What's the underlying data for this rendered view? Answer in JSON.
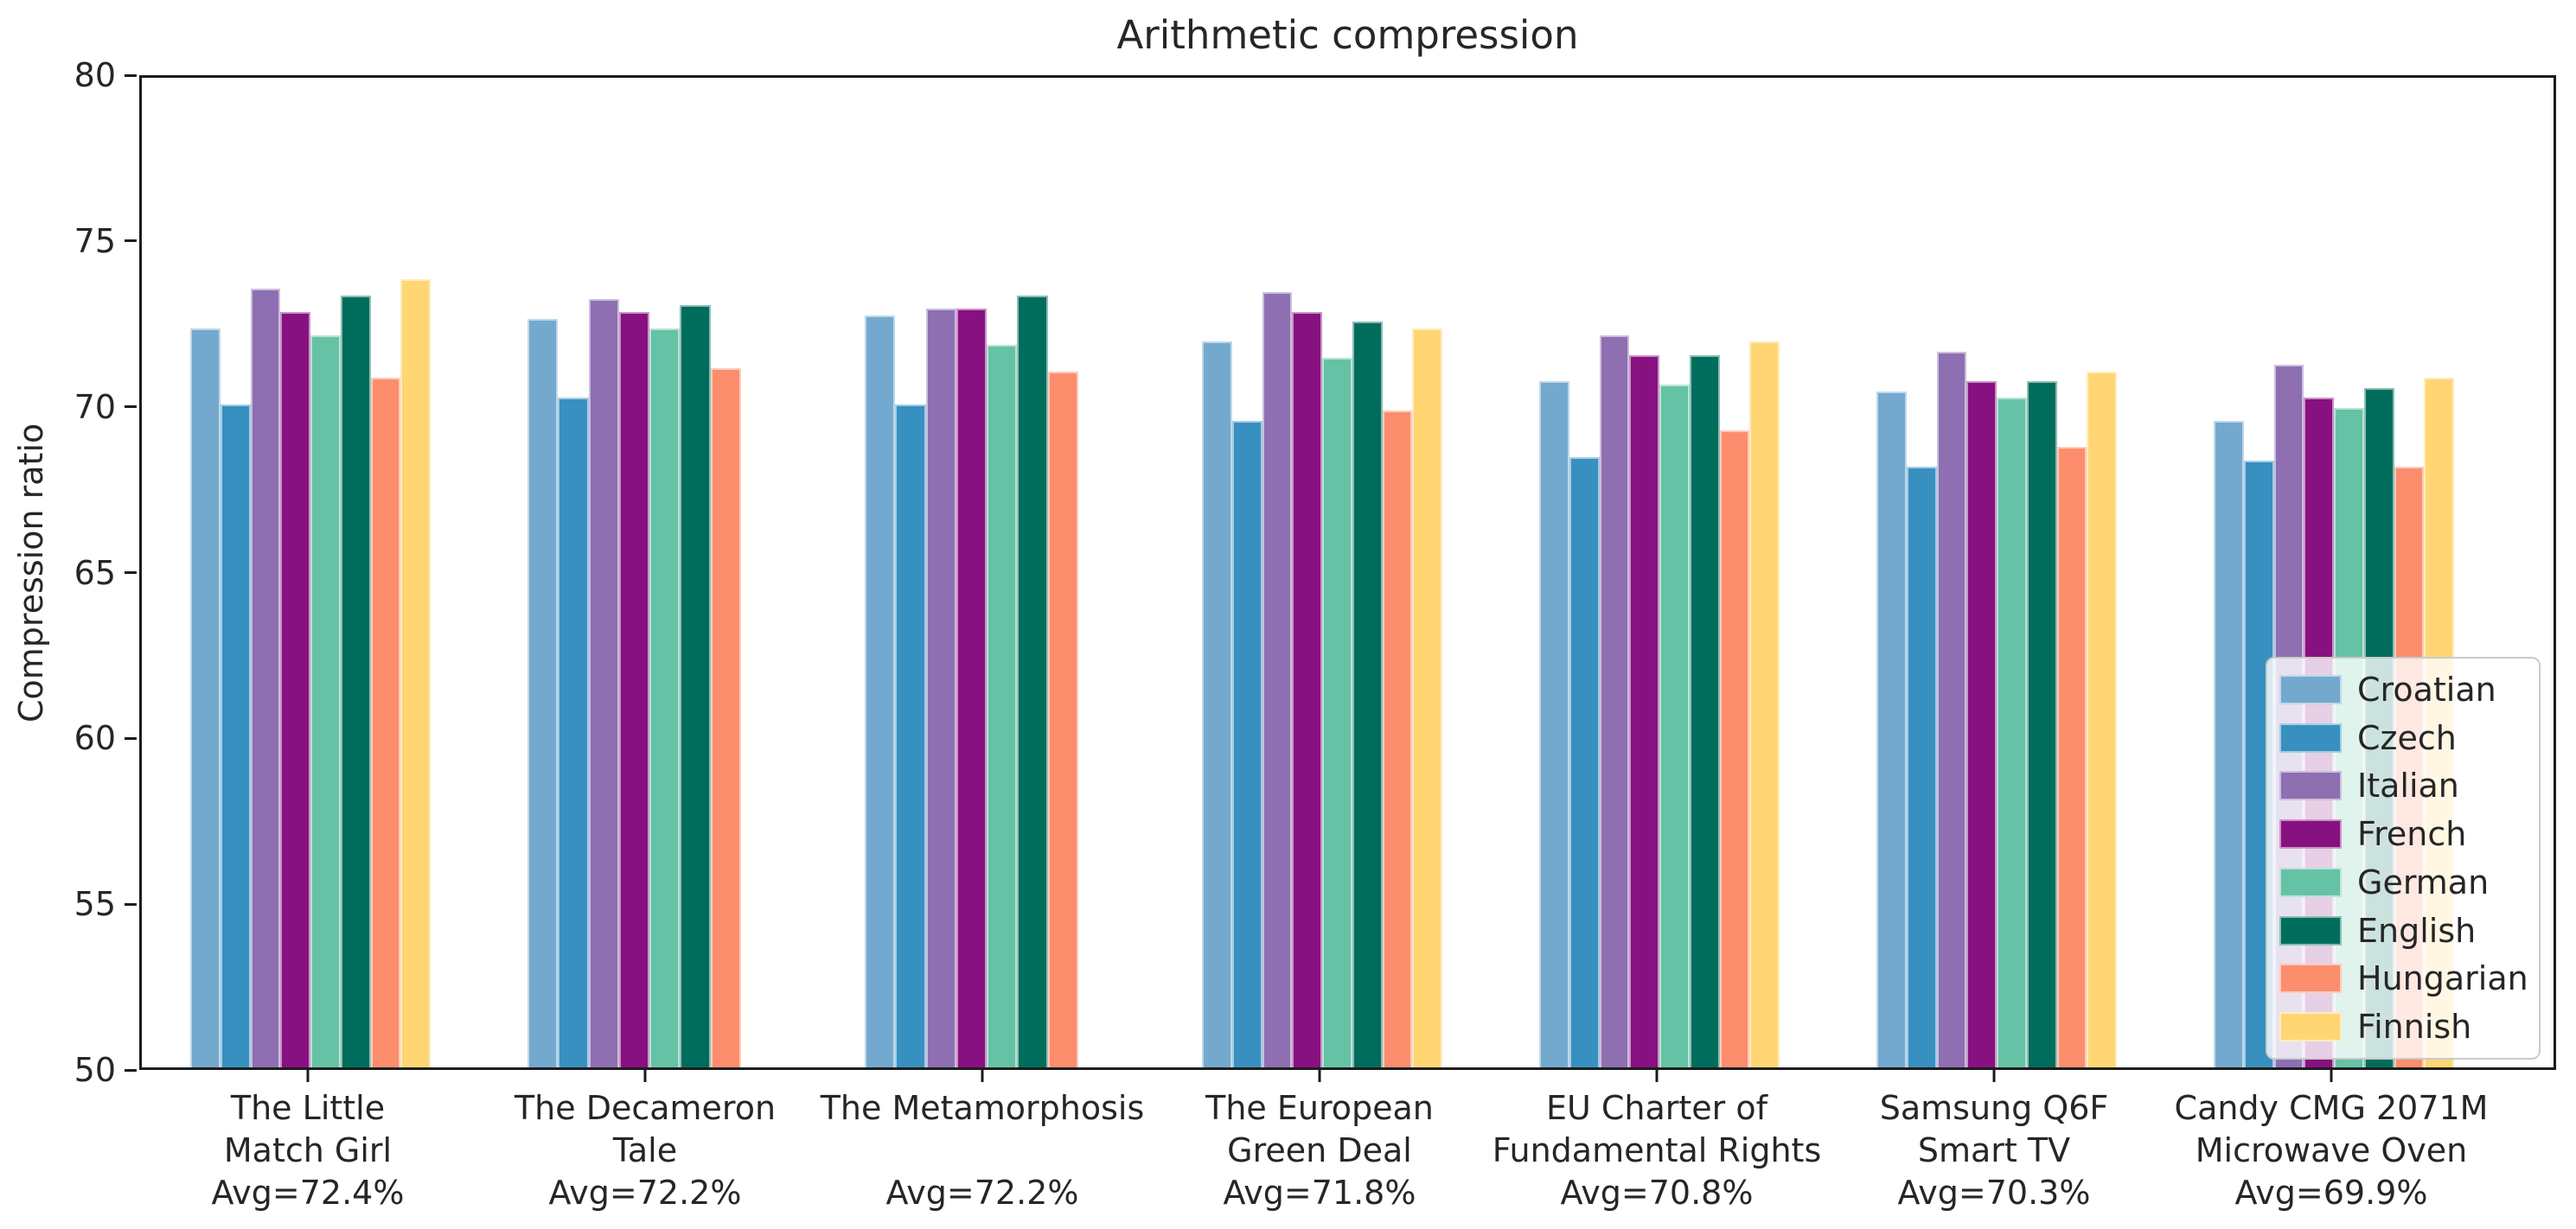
{
  "figure": {
    "title": "Arithmetic compression",
    "y_axis_label": "Compression ratio"
  },
  "chart_data": {
    "type": "bar",
    "title": "Arithmetic compression",
    "xlabel": "",
    "ylabel": "Compression ratio",
    "ylim": [
      50,
      80
    ],
    "yticks": [
      80,
      75,
      70,
      65,
      60,
      55,
      50
    ],
    "grid": false,
    "legend_position": "lower right",
    "legend_entries": [
      "Croatian",
      "Czech",
      "Italian",
      "French",
      "German",
      "English",
      "Hungarian",
      "Finnish"
    ],
    "categories": [
      {
        "label_lines": [
          "The Little",
          "Match Girl"
        ],
        "avg_label": "Avg=72.4%"
      },
      {
        "label_lines": [
          "The Decameron",
          "Tale"
        ],
        "avg_label": "Avg=72.2%"
      },
      {
        "label_lines": [
          "The Metamorphosis",
          ""
        ],
        "avg_label": "Avg=72.2%"
      },
      {
        "label_lines": [
          "The European",
          "Green Deal"
        ],
        "avg_label": "Avg=71.8%"
      },
      {
        "label_lines": [
          "EU Charter of",
          "Fundamental Rights"
        ],
        "avg_label": "Avg=70.8%"
      },
      {
        "label_lines": [
          "Samsung Q6F",
          "Smart TV"
        ],
        "avg_label": "Avg=70.3%"
      },
      {
        "label_lines": [
          "Candy CMG 2071M",
          "Microwave Oven"
        ],
        "avg_label": "Avg=69.9%"
      }
    ],
    "series": [
      {
        "name": "Croatian",
        "color": "#74a9cf",
        "values": [
          72.4,
          72.7,
          72.8,
          72.0,
          70.8,
          70.5,
          69.6
        ]
      },
      {
        "name": "Czech",
        "color": "#3790c0",
        "values": [
          70.1,
          70.3,
          70.1,
          69.6,
          68.5,
          68.2,
          68.4
        ]
      },
      {
        "name": "Italian",
        "color": "#8d6fb2",
        "values": [
          73.6,
          73.3,
          73.0,
          73.5,
          72.2,
          71.7,
          71.3
        ]
      },
      {
        "name": "French",
        "color": "#871180",
        "values": [
          72.9,
          72.9,
          73.0,
          72.9,
          71.6,
          70.8,
          70.3
        ]
      },
      {
        "name": "German",
        "color": "#66c2a5",
        "values": [
          72.2,
          72.4,
          71.9,
          71.5,
          70.7,
          70.3,
          70.0
        ]
      },
      {
        "name": "English",
        "color": "#006d5c",
        "values": [
          73.4,
          73.1,
          73.4,
          72.6,
          71.6,
          70.8,
          70.6
        ]
      },
      {
        "name": "Hungarian",
        "color": "#fc8d6d",
        "values": [
          70.9,
          71.2,
          71.1,
          69.9,
          69.3,
          68.8,
          68.2
        ]
      },
      {
        "name": "Finnish",
        "color": "#ffd673",
        "values": [
          73.9,
          null,
          null,
          72.4,
          72.0,
          71.1,
          70.9
        ]
      }
    ]
  }
}
